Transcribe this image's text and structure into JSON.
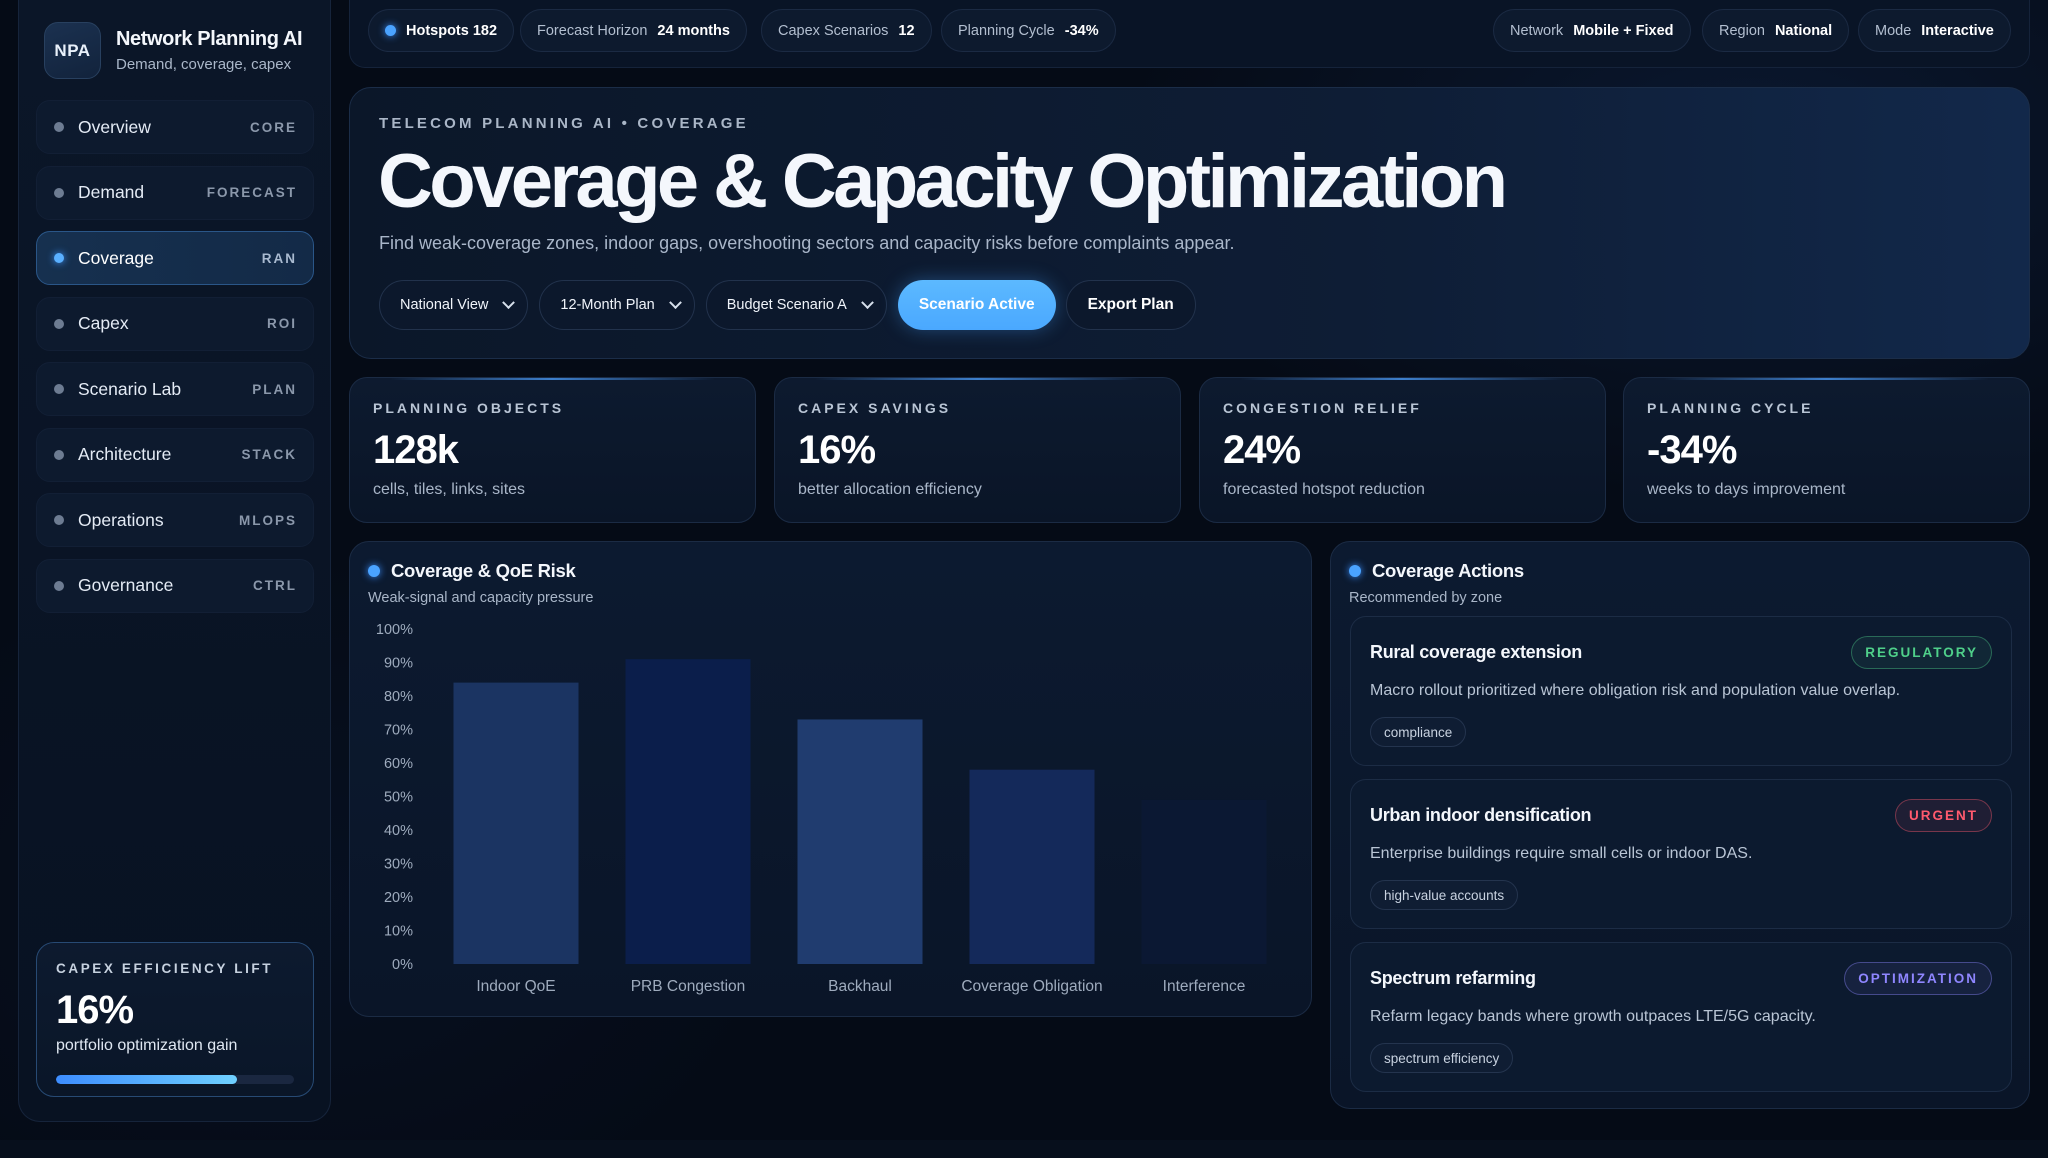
{
  "colors": {
    "accent": "#4aa3ff",
    "primary_button": "#4aa8ff",
    "regulatory": "#4fd08a",
    "urgent": "#ff5a6e",
    "optimization": "#8f86ff"
  },
  "brand": {
    "logo": "NPA",
    "title": "Network Planning AI",
    "subtitle": "Demand, coverage, capex"
  },
  "nav": [
    {
      "label": "Overview",
      "tag": "CORE"
    },
    {
      "label": "Demand",
      "tag": "FORECAST"
    },
    {
      "label": "Coverage",
      "tag": "RAN",
      "active": true
    },
    {
      "label": "Capex",
      "tag": "ROI"
    },
    {
      "label": "Scenario Lab",
      "tag": "PLAN"
    },
    {
      "label": "Architecture",
      "tag": "STACK"
    },
    {
      "label": "Operations",
      "tag": "MLOPS"
    },
    {
      "label": "Governance",
      "tag": "CTRL"
    }
  ],
  "capex_card": {
    "label": "CAPEX EFFICIENCY LIFT",
    "value": "16%",
    "subtitle": "portfolio optimization gain",
    "progress": 0.76
  },
  "topbar": {
    "hotspots": "Hotspots 182",
    "forecast": {
      "k": "Forecast Horizon",
      "v": "24 months"
    },
    "scenarios": {
      "k": "Capex Scenarios",
      "v": "12"
    },
    "cycle": {
      "k": "Planning Cycle",
      "v": "-34%"
    },
    "network": {
      "k": "Network",
      "v": "Mobile + Fixed"
    },
    "region": {
      "k": "Region",
      "v": "National"
    },
    "mode": {
      "k": "Mode",
      "v": "Interactive"
    }
  },
  "hero": {
    "eyebrow": "TELECOM PLANNING AI • COVERAGE",
    "title": "Coverage & Capacity Optimization",
    "subtitle": "Find weak-coverage zones, indoor gaps, overshooting sectors and capacity risks before complaints appear.",
    "selects": [
      "National View",
      "12-Month Plan",
      "Budget Scenario A"
    ],
    "primary_button": "Scenario Active",
    "secondary_button": "Export Plan"
  },
  "kpis": [
    {
      "label": "PLANNING OBJECTS",
      "value": "128k",
      "subtitle": "cells, tiles, links, sites"
    },
    {
      "label": "CAPEX SAVINGS",
      "value": "16%",
      "subtitle": "better allocation efficiency"
    },
    {
      "label": "CONGESTION RELIEF",
      "value": "24%",
      "subtitle": "forecasted hotspot reduction"
    },
    {
      "label": "PLANNING CYCLE",
      "value": "-34%",
      "subtitle": "weeks to days improvement"
    }
  ],
  "chart_panel": {
    "title": "Coverage & QoE Risk",
    "subtitle": "Weak-signal and capacity pressure"
  },
  "chart_data": {
    "type": "bar",
    "categories": [
      "Indoor QoE",
      "PRB Congestion",
      "Backhaul",
      "Coverage Obligation",
      "Interference"
    ],
    "values": [
      84,
      91,
      73,
      58,
      49
    ],
    "bar_colors": [
      "#1b3462",
      "#0b1e4b",
      "#203c6f",
      "#14295a",
      "#0b1833"
    ],
    "ylim": [
      0,
      100
    ],
    "y_ticks": [
      "0%",
      "10%",
      "20%",
      "30%",
      "40%",
      "50%",
      "60%",
      "70%",
      "80%",
      "90%",
      "100%"
    ],
    "grid": false
  },
  "actions_panel": {
    "title": "Coverage Actions",
    "subtitle": "Recommended by zone",
    "items": [
      {
        "title": "Rural coverage extension",
        "badge": "REGULATORY",
        "desc": "Macro rollout prioritized where obligation risk and population value overlap.",
        "chip": "compliance"
      },
      {
        "title": "Urban indoor densification",
        "badge": "URGENT",
        "desc": "Enterprise buildings require small cells or indoor DAS.",
        "chip": "high-value accounts"
      },
      {
        "title": "Spectrum refarming",
        "badge": "OPTIMIZATION",
        "desc": "Refarm legacy bands where growth outpaces LTE/5G capacity.",
        "chip": "spectrum efficiency"
      }
    ]
  }
}
